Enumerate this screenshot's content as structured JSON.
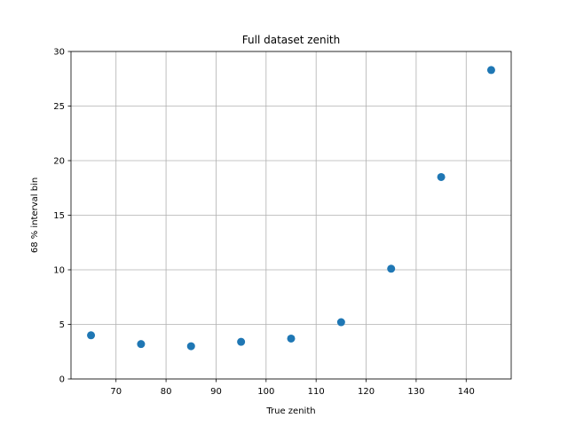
{
  "chart_data": {
    "type": "scatter",
    "title": "Full dataset zenith",
    "xlabel": "True zenith",
    "ylabel": "68 % interval bin",
    "xlim": [
      61,
      149
    ],
    "ylim": [
      0,
      30
    ],
    "xticks": [
      70,
      80,
      90,
      100,
      110,
      120,
      130,
      140
    ],
    "yticks": [
      0,
      5,
      10,
      15,
      20,
      25,
      30
    ],
    "grid": true,
    "marker_color": "#1f77b4",
    "series": [
      {
        "x": [
          65,
          75,
          85,
          95,
          105,
          115,
          125,
          135,
          145
        ],
        "y": [
          4.0,
          3.2,
          3.0,
          3.4,
          3.7,
          5.2,
          10.1,
          18.5,
          28.3
        ]
      }
    ]
  }
}
